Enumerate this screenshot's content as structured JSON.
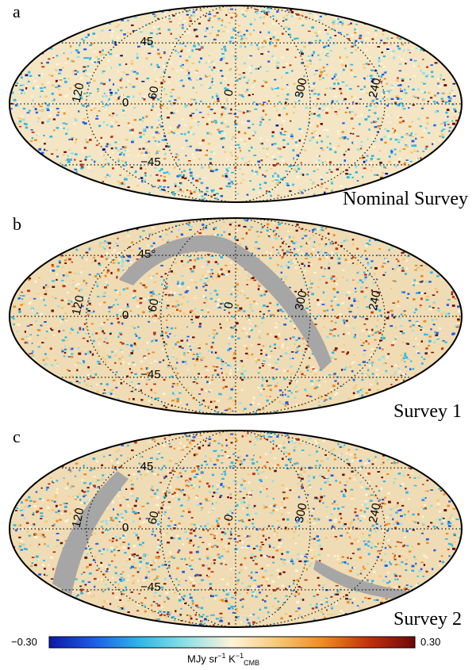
{
  "panels": [
    {
      "letter": "a",
      "title": "Nominal Survey",
      "has_gap": false,
      "lat_labels": [
        "45",
        "0",
        "−45"
      ],
      "lon_labels": [
        "120",
        "60",
        "0",
        "300",
        "240"
      ]
    },
    {
      "letter": "b",
      "title": "Survey 1",
      "has_gap": true,
      "lat_labels": [
        "45°",
        "0",
        "−45"
      ],
      "lon_labels": [
        "120",
        "60",
        "0",
        "300",
        "240"
      ]
    },
    {
      "letter": "c",
      "title": "Survey 2",
      "has_gap": true,
      "lat_labels": [
        "45",
        "0",
        "−45"
      ],
      "lon_labels": [
        "120",
        "60",
        "0",
        "300",
        "240"
      ]
    }
  ],
  "colorbar": {
    "min_label": "−0.30",
    "max_label": "0.30",
    "unit": "MJy sr",
    "unit_exp1": "−1",
    "unit_k": " K",
    "unit_exp2": "−1",
    "unit_sub": "CMB",
    "colors": [
      "#0a1aa8",
      "#1e5ee8",
      "#2fb8e8",
      "#8fe0e8",
      "#fff4d8",
      "#f5c878",
      "#ef8a1e",
      "#c2300c",
      "#6e0808"
    ]
  }
}
